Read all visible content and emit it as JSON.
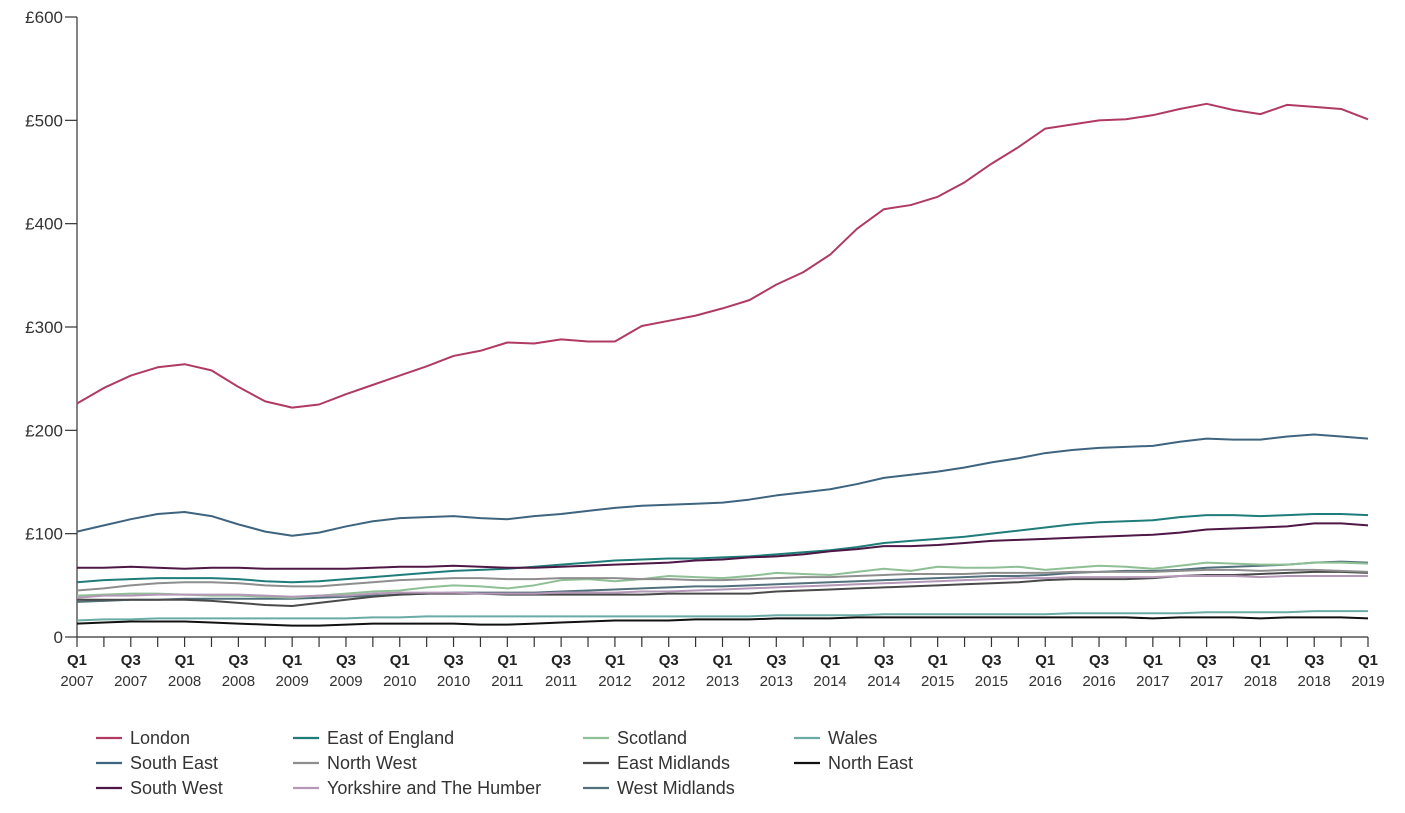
{
  "chart_data": {
    "type": "line",
    "title": "",
    "xlabel": "",
    "ylabel": "",
    "ylim": [
      0,
      600
    ],
    "yticks": [
      0,
      100,
      200,
      300,
      400,
      500,
      600
    ],
    "ytick_labels": [
      "0",
      "£100",
      "£200",
      "£300",
      "£400",
      "£500",
      "£600"
    ],
    "x_tick_labels": [
      {
        "q": "Q1",
        "year": "2007"
      },
      {
        "q": "Q3",
        "year": "2007"
      },
      {
        "q": "Q1",
        "year": "2008"
      },
      {
        "q": "Q3",
        "year": "2008"
      },
      {
        "q": "Q1",
        "year": "2009"
      },
      {
        "q": "Q3",
        "year": "2009"
      },
      {
        "q": "Q1",
        "year": "2010"
      },
      {
        "q": "Q3",
        "year": "2010"
      },
      {
        "q": "Q1",
        "year": "2011"
      },
      {
        "q": "Q3",
        "year": "2011"
      },
      {
        "q": "Q1",
        "year": "2012"
      },
      {
        "q": "Q3",
        "year": "2012"
      },
      {
        "q": "Q1",
        "year": "2013"
      },
      {
        "q": "Q3",
        "year": "2013"
      },
      {
        "q": "Q1",
        "year": "2014"
      },
      {
        "q": "Q3",
        "year": "2014"
      },
      {
        "q": "Q1",
        "year": "2015"
      },
      {
        "q": "Q3",
        "year": "2015"
      },
      {
        "q": "Q1",
        "year": "2016"
      },
      {
        "q": "Q3",
        "year": "2016"
      },
      {
        "q": "Q1",
        "year": "2017"
      },
      {
        "q": "Q3",
        "year": "2017"
      },
      {
        "q": "Q1",
        "year": "2018"
      },
      {
        "q": "Q3",
        "year": "2018"
      },
      {
        "q": "Q1",
        "year": "2019"
      }
    ],
    "legend_position": "bottom-left",
    "grid": false,
    "series": [
      {
        "name": "London",
        "color": "#b03a62",
        "values": [
          226,
          241,
          253,
          261,
          264,
          258,
          242,
          228,
          222,
          225,
          235,
          244,
          253,
          262,
          272,
          277,
          285,
          284,
          288,
          286,
          286,
          301,
          306,
          311,
          318,
          326,
          341,
          353,
          370,
          395,
          414,
          418,
          426,
          440,
          458,
          474,
          492,
          496,
          500,
          501,
          505,
          511,
          516,
          510,
          506,
          515,
          513,
          511,
          501
        ]
      },
      {
        "name": "South East",
        "color": "#3f6480",
        "values": [
          102,
          108,
          114,
          119,
          121,
          117,
          109,
          102,
          98,
          101,
          107,
          112,
          115,
          116,
          117,
          115,
          114,
          117,
          119,
          122,
          125,
          127,
          128,
          129,
          130,
          133,
          137,
          140,
          143,
          148,
          154,
          157,
          160,
          164,
          169,
          173,
          178,
          181,
          183,
          184,
          185,
          189,
          192,
          191,
          191,
          194,
          196,
          194,
          192
        ]
      },
      {
        "name": "South West",
        "color": "#4e1745",
        "values": [
          67,
          67,
          68,
          67,
          66,
          67,
          67,
          66,
          66,
          66,
          66,
          67,
          68,
          68,
          69,
          68,
          67,
          67,
          68,
          69,
          70,
          71,
          72,
          74,
          75,
          77,
          78,
          80,
          83,
          85,
          88,
          88,
          89,
          91,
          93,
          94,
          95,
          96,
          97,
          98,
          99,
          101,
          104,
          105,
          106,
          107,
          110,
          110,
          108
        ]
      },
      {
        "name": "East of England",
        "color": "#1f7d79",
        "values": [
          53,
          55,
          56,
          57,
          57,
          57,
          56,
          54,
          53,
          54,
          56,
          58,
          60,
          62,
          64,
          65,
          66,
          68,
          70,
          72,
          74,
          75,
          76,
          76,
          77,
          78,
          80,
          82,
          84,
          87,
          91,
          93,
          95,
          97,
          100,
          103,
          106,
          109,
          111,
          112,
          113,
          116,
          118,
          118,
          117,
          118,
          119,
          119,
          118
        ]
      },
      {
        "name": "North West",
        "color": "#8e8e8e",
        "values": [
          45,
          47,
          50,
          52,
          53,
          53,
          52,
          50,
          49,
          49,
          51,
          53,
          55,
          56,
          57,
          57,
          56,
          56,
          57,
          57,
          57,
          56,
          56,
          55,
          55,
          56,
          57,
          58,
          58,
          59,
          60,
          61,
          61,
          61,
          62,
          62,
          62,
          63,
          63,
          63,
          63,
          64,
          65,
          65,
          64,
          65,
          65,
          64,
          63
        ]
      },
      {
        "name": "Yorkshire and The Humber",
        "color": "#b597b8",
        "values": [
          38,
          40,
          40,
          41,
          41,
          41,
          41,
          40,
          39,
          40,
          40,
          42,
          43,
          43,
          43,
          42,
          42,
          42,
          43,
          43,
          43,
          44,
          44,
          45,
          46,
          47,
          48,
          49,
          50,
          51,
          52,
          53,
          54,
          55,
          56,
          57,
          57,
          58,
          58,
          58,
          58,
          59,
          59,
          59,
          58,
          59,
          59,
          59,
          59
        ]
      },
      {
        "name": "Scotland",
        "color": "#8fbf95",
        "values": [
          40,
          41,
          42,
          42,
          41,
          40,
          40,
          39,
          38,
          40,
          42,
          44,
          45,
          48,
          50,
          49,
          47,
          50,
          55,
          56,
          54,
          56,
          59,
          58,
          57,
          59,
          62,
          61,
          60,
          63,
          66,
          64,
          68,
          67,
          67,
          68,
          65,
          67,
          69,
          68,
          66,
          69,
          72,
          71,
          70,
          70,
          72,
          72,
          71
        ]
      },
      {
        "name": "East Midlands",
        "color": "#4a4a4a",
        "values": [
          36,
          36,
          36,
          36,
          36,
          35,
          33,
          31,
          30,
          33,
          36,
          39,
          41,
          42,
          42,
          42,
          41,
          41,
          41,
          41,
          41,
          41,
          42,
          42,
          42,
          42,
          44,
          45,
          46,
          47,
          48,
          49,
          50,
          51,
          52,
          53,
          55,
          56,
          56,
          56,
          57,
          59,
          60,
          60,
          61,
          62,
          63,
          63,
          62
        ]
      },
      {
        "name": "West Midlands",
        "color": "#53707d",
        "values": [
          34,
          35,
          36,
          36,
          37,
          37,
          37,
          37,
          37,
          38,
          39,
          40,
          41,
          42,
          43,
          43,
          43,
          43,
          44,
          45,
          46,
          47,
          48,
          49,
          49,
          50,
          51,
          52,
          53,
          54,
          55,
          56,
          57,
          58,
          59,
          59,
          60,
          62,
          63,
          64,
          64,
          65,
          67,
          68,
          69,
          70,
          72,
          73,
          72
        ]
      },
      {
        "name": "Wales",
        "color": "#6aaba6",
        "values": [
          16,
          17,
          17,
          18,
          18,
          18,
          18,
          18,
          18,
          18,
          18,
          19,
          19,
          20,
          20,
          20,
          20,
          20,
          20,
          20,
          20,
          20,
          20,
          20,
          20,
          20,
          21,
          21,
          21,
          21,
          22,
          22,
          22,
          22,
          22,
          22,
          22,
          23,
          23,
          23,
          23,
          23,
          24,
          24,
          24,
          24,
          25,
          25,
          25
        ]
      },
      {
        "name": "North East",
        "color": "#111111",
        "values": [
          13,
          14,
          15,
          15,
          15,
          14,
          13,
          12,
          11,
          11,
          12,
          13,
          13,
          13,
          13,
          12,
          12,
          13,
          14,
          15,
          16,
          16,
          16,
          17,
          17,
          17,
          18,
          18,
          18,
          19,
          19,
          19,
          19,
          19,
          19,
          19,
          19,
          19,
          19,
          19,
          18,
          19,
          19,
          19,
          18,
          19,
          19,
          19,
          18
        ]
      }
    ]
  },
  "legend_layout": [
    [
      "London",
      "East of England",
      "Scotland",
      "Wales"
    ],
    [
      "South East",
      "North West",
      "East Midlands",
      "North East"
    ],
    [
      "South West",
      "Yorkshire and The Humber",
      "West Midlands"
    ]
  ]
}
